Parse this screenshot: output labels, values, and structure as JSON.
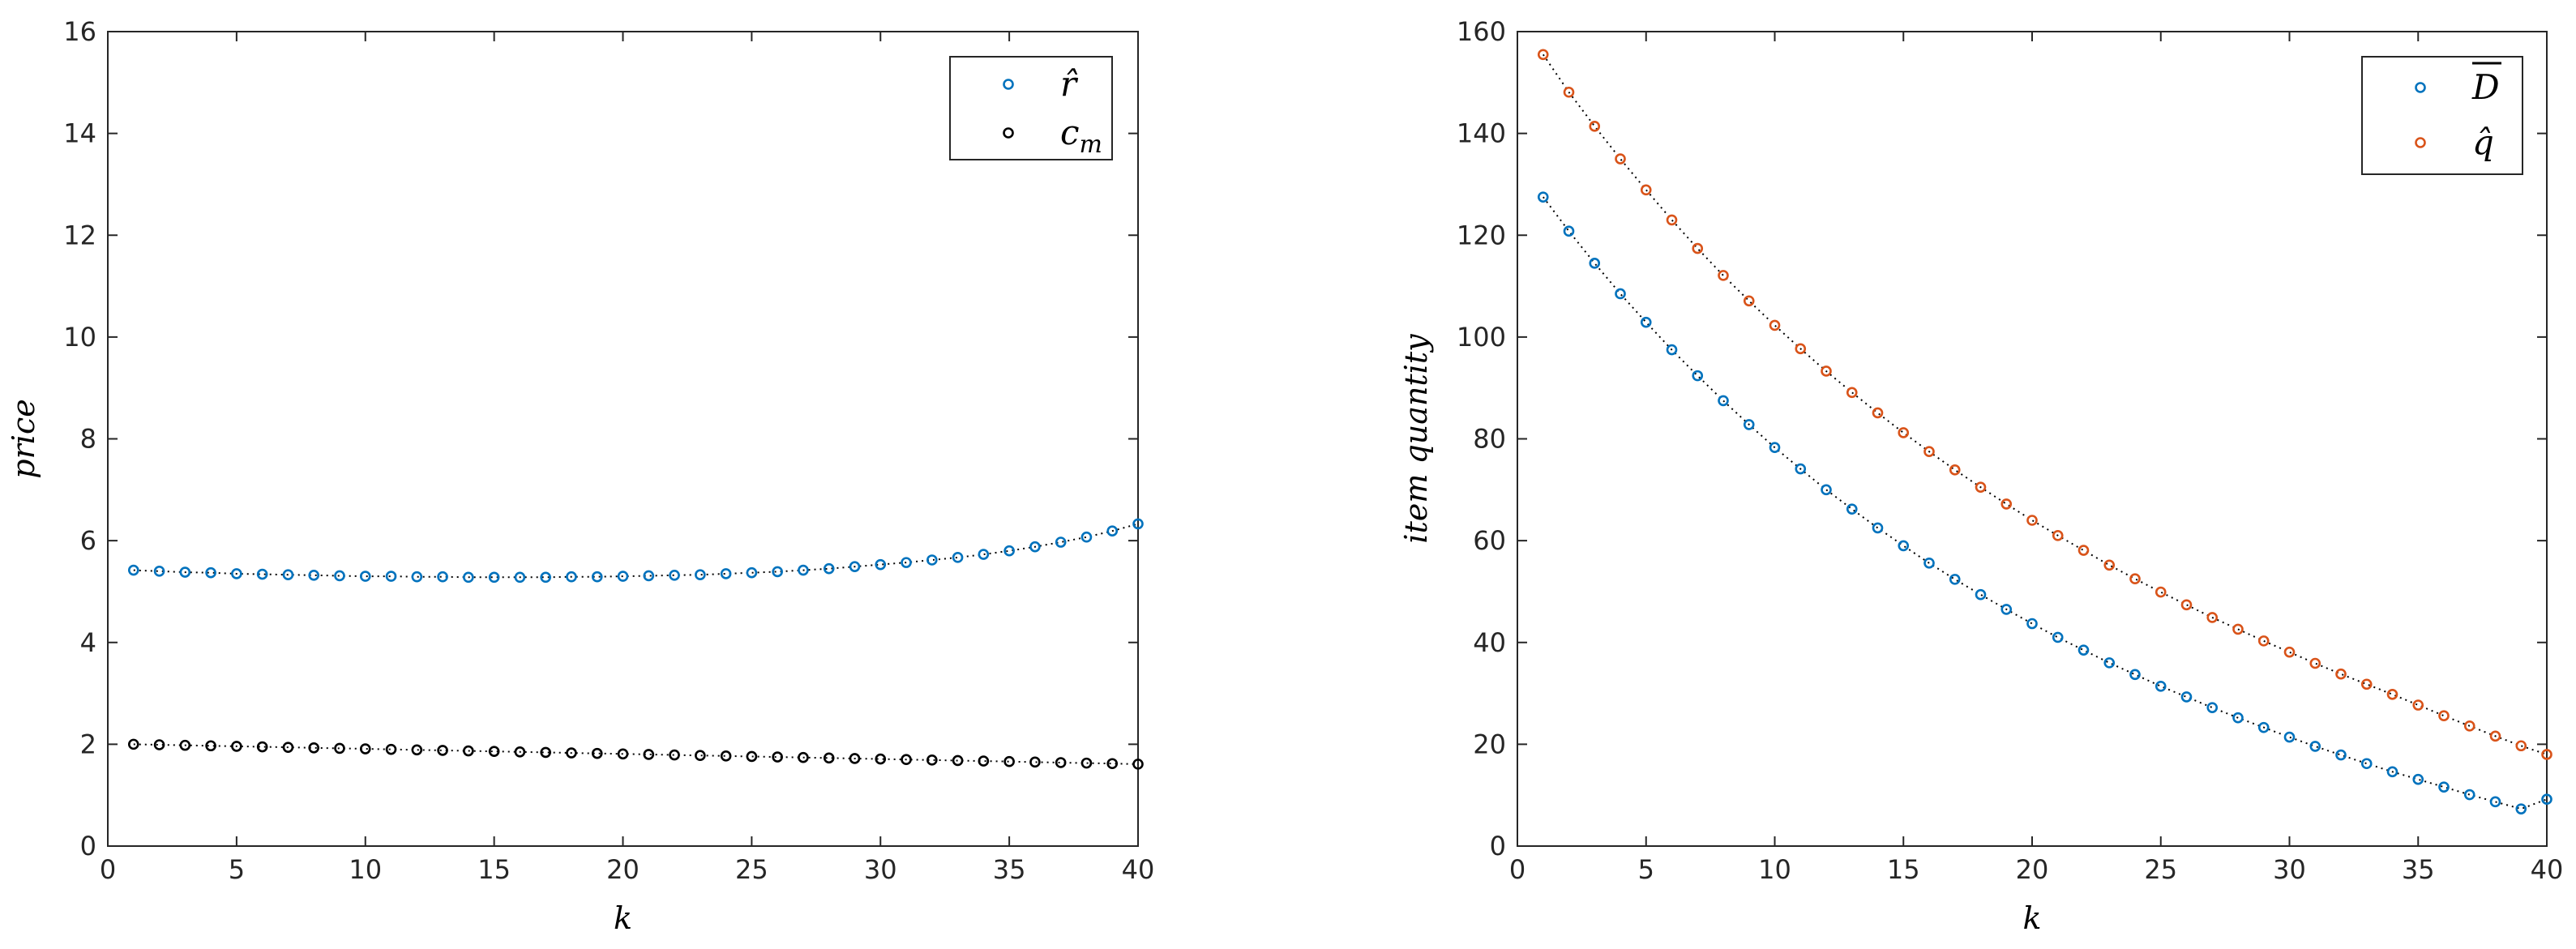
{
  "chart_data": [
    {
      "type": "scatter",
      "xlabel": "k",
      "ylabel": "price",
      "xlim": [
        0,
        40
      ],
      "ylim": [
        0,
        16
      ],
      "xticks": [
        0,
        5,
        10,
        15,
        20,
        25,
        30,
        35,
        40
      ],
      "yticks": [
        0,
        2,
        4,
        6,
        8,
        10,
        12,
        14,
        16
      ],
      "x": [
        1,
        2,
        3,
        4,
        5,
        6,
        7,
        8,
        9,
        10,
        11,
        12,
        13,
        14,
        15,
        16,
        17,
        18,
        19,
        20,
        21,
        22,
        23,
        24,
        25,
        26,
        27,
        28,
        29,
        30,
        31,
        32,
        33,
        34,
        35,
        36,
        37,
        38,
        39,
        40
      ],
      "legend_position": "top-right",
      "series": [
        {
          "name": "r̂",
          "color": "#0072BD",
          "values": [
            5.42,
            5.4,
            5.38,
            5.37,
            5.35,
            5.34,
            5.33,
            5.32,
            5.31,
            5.3,
            5.3,
            5.29,
            5.29,
            5.28,
            5.28,
            5.28,
            5.28,
            5.29,
            5.29,
            5.3,
            5.31,
            5.32,
            5.33,
            5.35,
            5.37,
            5.39,
            5.42,
            5.45,
            5.49,
            5.53,
            5.57,
            5.62,
            5.67,
            5.73,
            5.8,
            5.88,
            5.97,
            6.07,
            6.19,
            6.33
          ]
        },
        {
          "name": "c_m",
          "color": "#000000",
          "values": [
            2.0,
            1.99,
            1.98,
            1.97,
            1.96,
            1.95,
            1.94,
            1.93,
            1.92,
            1.91,
            1.9,
            1.89,
            1.88,
            1.87,
            1.86,
            1.85,
            1.84,
            1.83,
            1.82,
            1.81,
            1.8,
            1.79,
            1.78,
            1.77,
            1.76,
            1.75,
            1.74,
            1.73,
            1.72,
            1.71,
            1.7,
            1.69,
            1.68,
            1.67,
            1.66,
            1.65,
            1.64,
            1.63,
            1.62,
            1.61
          ]
        }
      ]
    },
    {
      "type": "scatter",
      "xlabel": "k",
      "ylabel": "item quantity",
      "xlim": [
        0,
        40
      ],
      "ylim": [
        0,
        160
      ],
      "xticks": [
        0,
        5,
        10,
        15,
        20,
        25,
        30,
        35,
        40
      ],
      "yticks": [
        0,
        20,
        40,
        60,
        80,
        100,
        120,
        140,
        160
      ],
      "x": [
        1,
        2,
        3,
        4,
        5,
        6,
        7,
        8,
        9,
        10,
        11,
        12,
        13,
        14,
        15,
        16,
        17,
        18,
        19,
        20,
        21,
        22,
        23,
        24,
        25,
        26,
        27,
        28,
        29,
        30,
        31,
        32,
        33,
        34,
        35,
        36,
        37,
        38,
        39,
        40
      ],
      "legend_position": "top-right",
      "series": [
        {
          "name": "D̄",
          "color": "#0072BD",
          "values": [
            127.5,
            120.8,
            114.5,
            108.5,
            102.9,
            97.5,
            92.4,
            87.5,
            82.8,
            78.3,
            74.1,
            70.0,
            66.2,
            62.5,
            59.0,
            55.6,
            52.4,
            49.4,
            46.5,
            43.7,
            41.0,
            38.5,
            36.0,
            33.7,
            31.4,
            29.3,
            27.2,
            25.2,
            23.3,
            21.4,
            19.6,
            17.9,
            16.2,
            14.6,
            13.1,
            11.6,
            10.1,
            8.7,
            7.3,
            9.2
          ]
        },
        {
          "name": "q̂",
          "color": "#D95319",
          "values": [
            155.5,
            148.1,
            141.4,
            135.0,
            128.9,
            123.0,
            117.4,
            112.1,
            107.1,
            102.3,
            97.7,
            93.3,
            89.1,
            85.1,
            81.2,
            77.5,
            73.9,
            70.5,
            67.2,
            64.0,
            61.0,
            58.1,
            55.2,
            52.5,
            49.9,
            47.4,
            44.9,
            42.6,
            40.3,
            38.1,
            35.9,
            33.8,
            31.8,
            29.8,
            27.7,
            25.6,
            23.6,
            21.6,
            19.7,
            18.0
          ]
        }
      ]
    }
  ]
}
